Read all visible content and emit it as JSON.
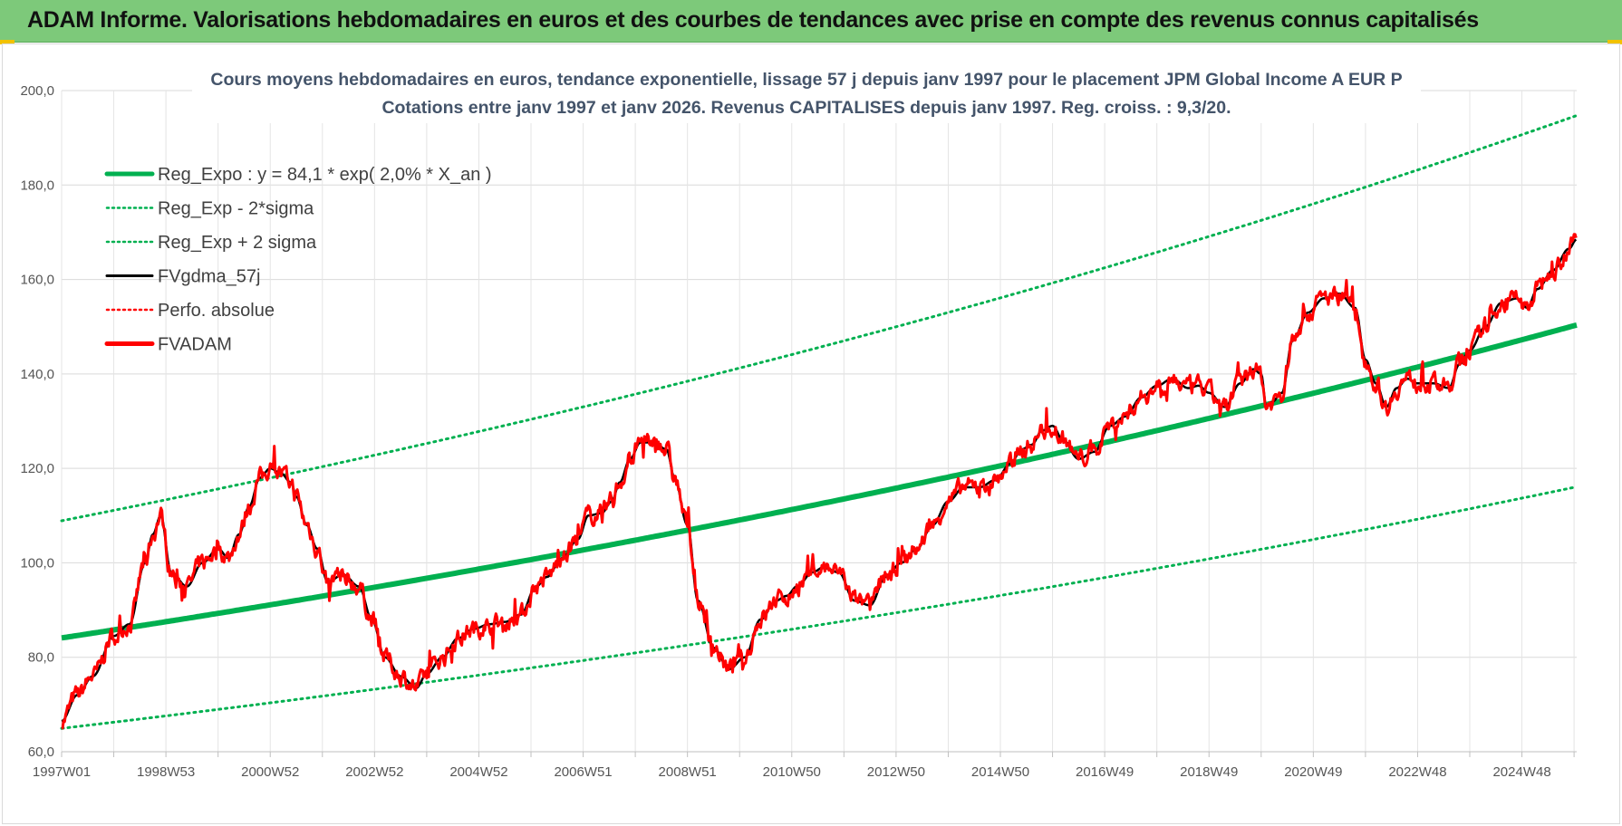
{
  "banner": {
    "title": "ADAM Informe. Valorisations hebdomadaires en euros et des courbes de tendances avec prise en compte des revenus connus capitalisés"
  },
  "colors": {
    "banner_bg": "#7dc97a",
    "trend": "#00b050",
    "smoothed": "#000000",
    "price": "#ff0000",
    "title_text": "#44546a"
  },
  "chart_data": {
    "type": "line",
    "title": "Cours moyens hebdomadaires en euros, tendance exponentielle, lissage 57 j depuis janv 1997  pour le  placement JPM Global Income A EUR P",
    "subtitle": "Cotations entre janv 1997 et janv 2026. Revenus CAPITALISES depuis janv 1997. Reg. croiss. : 9,3/20.",
    "xlabel": "",
    "ylabel": "",
    "ylim": [
      60,
      200
    ],
    "y_ticks": [
      "200,0",
      "180,0",
      "160,0",
      "140,0",
      "120,0",
      "100,0",
      "80,0",
      "60,0"
    ],
    "x_range": [
      1997.0,
      2026.05
    ],
    "x_tick_labels": [
      "1997W01",
      "1998W53",
      "2000W52",
      "2002W52",
      "2004W52",
      "2006W51",
      "2008W51",
      "2010W50",
      "2012W50",
      "2014W50",
      "2016W49",
      "2018W49",
      "2020W49",
      "2022W48",
      "2024W48"
    ],
    "grid": true,
    "legend_position": "top-left",
    "trend": {
      "a": 84.1,
      "rate": 0.02,
      "sigma_factor": 1.295
    },
    "series": [
      {
        "name": "Reg_Expo : y = 84,1 * exp( 2,0% *  X_an )",
        "role": "trend",
        "style": "solid-thick",
        "color": "#00b050"
      },
      {
        "name": "Reg_Exp - 2*sigma",
        "role": "lower",
        "style": "dotted",
        "color": "#00b050"
      },
      {
        "name": "Reg_Exp + 2 sigma",
        "role": "upper",
        "style": "dotted",
        "color": "#00b050"
      },
      {
        "name": "FVgdma_57j",
        "role": "smoothed",
        "style": "solid",
        "color": "#000000"
      },
      {
        "name": "Perfo. absolue",
        "role": "absolute",
        "style": "dotted",
        "color": "#ff0000"
      },
      {
        "name": "FVADAM",
        "role": "price",
        "style": "solid-thick",
        "color": "#ff0000"
      }
    ],
    "price_path": {
      "x": [
        1997.0,
        1997.3,
        1997.6,
        1998.0,
        1998.3,
        1998.6,
        1998.75,
        1998.9,
        1999.1,
        1999.4,
        1999.7,
        2000.0,
        2000.2,
        2000.4,
        2000.6,
        2000.8,
        2001.0,
        2001.2,
        2001.4,
        2001.5,
        2001.7,
        2001.9,
        2002.1,
        2002.4,
        2002.7,
        2002.95,
        2003.2,
        2003.5,
        2003.8,
        2004.0,
        2004.3,
        2004.6,
        2004.9,
        2005.2,
        2005.5,
        2005.8,
        2006.1,
        2006.3,
        2006.6,
        2006.9,
        2007.1,
        2007.35,
        2007.55,
        2007.7,
        2007.9,
        2008.1,
        2008.35,
        2008.6,
        2008.75,
        2009.0,
        2009.2,
        2009.5,
        2009.8,
        2010.1,
        2010.4,
        2010.7,
        2010.9,
        2011.1,
        2011.4,
        2011.6,
        2011.9,
        2012.2,
        2012.5,
        2012.8,
        2013.1,
        2013.4,
        2013.7,
        2014.0,
        2014.3,
        2014.6,
        2014.9,
        2015.2,
        2015.4,
        2015.6,
        2015.8,
        2016.0,
        2016.2,
        2016.5,
        2016.8,
        2017.1,
        2017.4,
        2017.7,
        2018.0,
        2018.3,
        2018.6,
        2018.8,
        2019.0,
        2019.3,
        2019.6,
        2019.85,
        2020.0,
        2020.1,
        2020.2,
        2020.4,
        2020.6,
        2020.9,
        2021.2,
        2021.5,
        2021.8,
        2022.0,
        2022.2,
        2022.4,
        2022.6,
        2022.8,
        2023.0,
        2023.3,
        2023.6,
        2023.8,
        2024.0,
        2024.3,
        2024.6,
        2024.9,
        2025.1,
        2025.3,
        2025.6,
        2025.9,
        2026.05
      ],
      "y": [
        66.5,
        72.0,
        76.0,
        84.5,
        87.0,
        100.0,
        106.0,
        110.0,
        98.0,
        95.0,
        100.0,
        103.0,
        101.0,
        106.0,
        112.0,
        118.0,
        120.0,
        119.0,
        117.0,
        114.0,
        108.0,
        103.0,
        96.0,
        97.5,
        95.0,
        88.0,
        80.0,
        76.0,
        73.5,
        76.5,
        80.0,
        84.0,
        86.0,
        87.0,
        87.5,
        89.0,
        95.0,
        97.0,
        101.0,
        105.0,
        110.0,
        110.5,
        113.0,
        117.0,
        122.0,
        125.5,
        125.5,
        124.0,
        118.0,
        108.0,
        92.0,
        82.0,
        77.5,
        80.0,
        88.0,
        92.0,
        93.0,
        95.0,
        98.0,
        99.0,
        98.0,
        92.0,
        91.0,
        97.0,
        100.0,
        103.0,
        108.0,
        113.0,
        116.0,
        116.0,
        117.5,
        121.0,
        124.0,
        125.0,
        128.0,
        129.0,
        126.0,
        122.0,
        123.5,
        129.0,
        131.0,
        135.0,
        137.5,
        139.0,
        137.0,
        137.5,
        136.0,
        133.0,
        138.0,
        141.0,
        140.0,
        133.0,
        134.0,
        136.0,
        147.0,
        153.0,
        156.0,
        157.0,
        154.0,
        143.0,
        138.0,
        133.0,
        137.0,
        139.0,
        138.0,
        138.0,
        137.0,
        142.0,
        145.0,
        150.0,
        155.0,
        156.0,
        154.0,
        158.0,
        162.0,
        166.5,
        168.5
      ]
    }
  }
}
